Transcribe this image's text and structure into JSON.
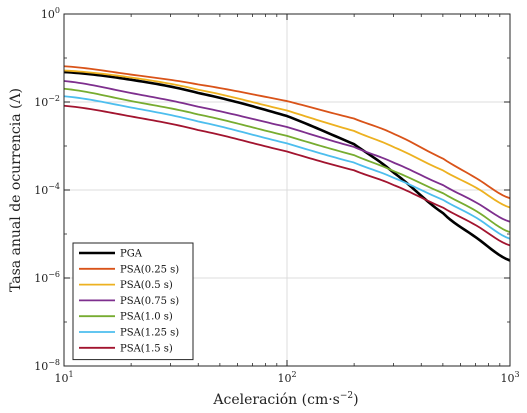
{
  "chart_data": {
    "type": "line",
    "title": "",
    "xlabel": "Aceleración (cm·s",
    "xlabel_exponent": "−2",
    "xlabel_close": ")",
    "ylabel": "Tasa anual de ocurrencia (Λ)",
    "xscale": "log",
    "yscale": "log",
    "xlim": [
      10,
      1000
    ],
    "ylim": [
      1e-08,
      1
    ],
    "grid": true,
    "legend_position": "bottom-left",
    "x_ticks": [
      {
        "base": "10",
        "exp": "1"
      },
      {
        "base": "10",
        "exp": "2"
      },
      {
        "base": "10",
        "exp": "3"
      }
    ],
    "y_ticks": [
      {
        "base": "10",
        "exp": "−8"
      },
      {
        "base": "10",
        "exp": "−6"
      },
      {
        "base": "10",
        "exp": "−4"
      },
      {
        "base": "10",
        "exp": "−2"
      },
      {
        "base": "10",
        "exp": "0"
      }
    ],
    "x": [
      10,
      20,
      40,
      100,
      200,
      300,
      500,
      700,
      1000
    ],
    "series": [
      {
        "name": "PGA",
        "color": "#000000",
        "values": [
          0.048,
          0.032,
          0.016,
          0.0048,
          0.0011,
          0.00025,
          3e-05,
          8.5e-06,
          2.5e-06
        ]
      },
      {
        "name": "PSA(0.25 s)",
        "color": "#D95319",
        "values": [
          0.065,
          0.042,
          0.025,
          0.0105,
          0.0042,
          0.0019,
          0.00052,
          0.00019,
          6.5e-05
        ]
      },
      {
        "name": "PSA(0.5 s)",
        "color": "#EDB120",
        "values": [
          0.052,
          0.036,
          0.019,
          0.0064,
          0.0022,
          0.00095,
          0.00028,
          0.000115,
          4e-05
        ]
      },
      {
        "name": "PSA(0.75 s)",
        "color": "#7E2F8E",
        "values": [
          0.03,
          0.016,
          0.0078,
          0.0027,
          0.00095,
          0.00042,
          0.00013,
          5.3e-05,
          1.9e-05
        ]
      },
      {
        "name": "PSA(1.0 s)",
        "color": "#77AC30",
        "values": [
          0.02,
          0.0105,
          0.0052,
          0.0017,
          0.00062,
          0.00027,
          8.5e-05,
          3.4e-05,
          1.1e-05
        ]
      },
      {
        "name": "PSA(1.25 s)",
        "color": "#4DBEEE",
        "values": [
          0.0135,
          0.0075,
          0.0036,
          0.00115,
          0.00042,
          0.00019,
          6e-05,
          2.4e-05,
          7.8e-06
        ]
      },
      {
        "name": "PSA(1.5 s)",
        "color": "#A2142F",
        "values": [
          0.0082,
          0.0047,
          0.0023,
          0.00075,
          0.00028,
          0.00013,
          4e-05,
          1.6e-05,
          5.5e-06
        ]
      }
    ]
  }
}
